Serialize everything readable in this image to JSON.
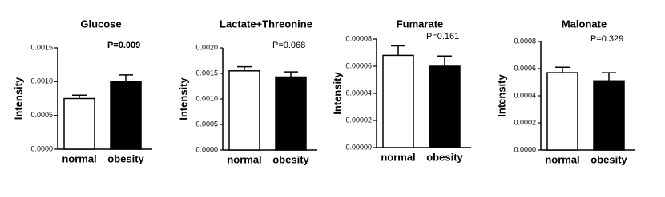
{
  "chart_data": [
    {
      "type": "bar",
      "title": "Glucose",
      "ylabel": "Intensity",
      "annotation": "P=0.009",
      "categories": [
        "normal",
        "obesity"
      ],
      "values": [
        0.00075,
        0.001
      ],
      "errors": [
        5e-05,
        0.0001
      ],
      "colors": [
        "#ffffff",
        "#000000"
      ],
      "ylim": [
        0,
        0.0015
      ],
      "yticks": [
        {
          "value": 0,
          "label": "0.0000"
        },
        {
          "value": 0.0005,
          "label": "0.0005"
        },
        {
          "value": 0.001,
          "label": "0.0010"
        },
        {
          "value": 0.0015,
          "label": "0.0015"
        }
      ]
    },
    {
      "type": "bar",
      "title": "Lactate+Threonine",
      "ylabel": "Intensity",
      "annotation": "P=0.068",
      "categories": [
        "normal",
        "obesity"
      ],
      "values": [
        0.00155,
        0.00143
      ],
      "errors": [
        8e-05,
        0.0001
      ],
      "colors": [
        "#ffffff",
        "#000000"
      ],
      "ylim": [
        0,
        0.002
      ],
      "yticks": [
        {
          "value": 0,
          "label": "0.0000"
        },
        {
          "value": 0.0005,
          "label": "0.0005"
        },
        {
          "value": 0.001,
          "label": "0.0010"
        },
        {
          "value": 0.0015,
          "label": "0.0015"
        },
        {
          "value": 0.002,
          "label": "0.0020"
        }
      ]
    },
    {
      "type": "bar",
      "title": "Fumarate",
      "ylabel": "Intensity",
      "annotation": "P=0.161",
      "categories": [
        "normal",
        "obesity"
      ],
      "values": [
        6.8e-05,
        6e-05
      ],
      "errors": [
        7e-06,
        7.5e-06
      ],
      "colors": [
        "#ffffff",
        "#000000"
      ],
      "ylim": [
        0,
        8e-05
      ],
      "yticks": [
        {
          "value": 0,
          "label": "0.00000"
        },
        {
          "value": 2e-05,
          "label": "0.00002"
        },
        {
          "value": 4e-05,
          "label": "0.00004"
        },
        {
          "value": 6e-05,
          "label": "0.00006"
        },
        {
          "value": 8e-05,
          "label": "0.00008"
        }
      ]
    },
    {
      "type": "bar",
      "title": "Malonate",
      "ylabel": "Intensity",
      "annotation": "P=0.329",
      "categories": [
        "normal",
        "obesity"
      ],
      "values": [
        0.00057,
        0.00051
      ],
      "errors": [
        4e-05,
        6e-05
      ],
      "colors": [
        "#ffffff",
        "#000000"
      ],
      "ylim": [
        0,
        0.0008
      ],
      "yticks": [
        {
          "value": 0,
          "label": "0.0000"
        },
        {
          "value": 0.0002,
          "label": "0.0002"
        },
        {
          "value": 0.0004,
          "label": "0.0004"
        },
        {
          "value": 0.0006,
          "label": "0.0006"
        },
        {
          "value": 0.0008,
          "label": "0.0008"
        }
      ]
    }
  ]
}
